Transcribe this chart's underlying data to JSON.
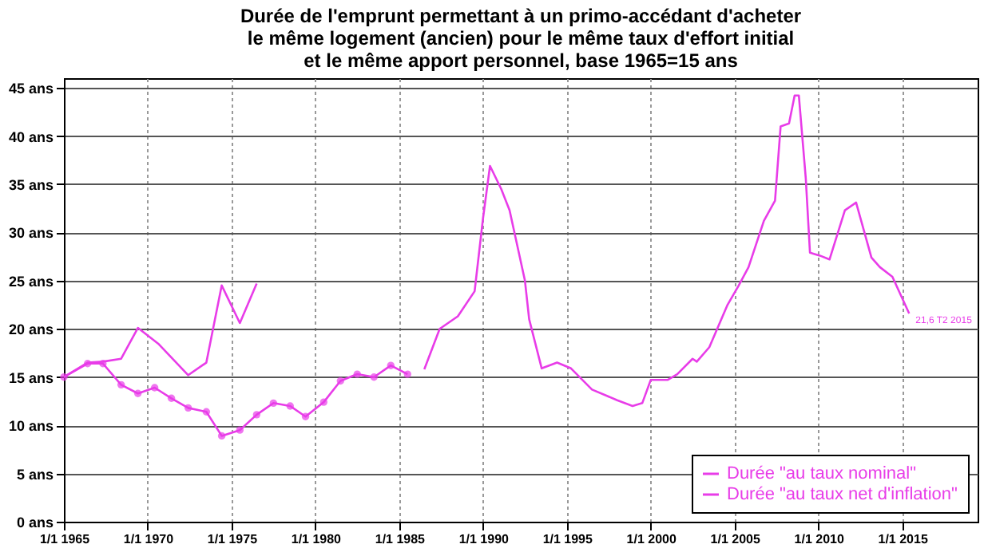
{
  "chart_data": {
    "type": "line",
    "title": [
      "Durée de l'emprunt permettant à un primo-accédant d'acheter",
      "le même logement (ancien) pour le même taux d'effort initial",
      "et le même apport personnel, base 1965=15 ans"
    ],
    "series": [
      {
        "name": "Durée \"au taux nominal\"",
        "color": "#e83ce8",
        "marker": "none",
        "x": [
          "1965-01",
          "1966-06",
          "1967-05",
          "1968-06",
          "1969-06",
          "1970-09",
          "1972-06",
          "1973-07",
          "1974-06",
          "1975-07",
          "1976-07",
          "1981-01",
          "1986-07",
          "1987-06",
          "1988-07",
          "1989-07",
          "1990-01",
          "1990-06",
          "1991-02",
          "1991-08",
          "1992-07",
          "1992-10",
          "1993-07",
          "1994-06",
          "1995-04",
          "1996-07",
          "1998-01",
          "1998-12",
          "1999-07",
          "2000-01",
          "2001-01",
          "2001-08",
          "2002-07",
          "2002-10",
          "2003-07",
          "2004-08",
          "2005-04",
          "2005-11",
          "2006-10",
          "2007-06",
          "2007-10",
          "2008-04",
          "2008-08",
          "2008-11",
          "2009-04",
          "2009-07",
          "2010-02",
          "2010-09",
          "2011-08",
          "2012-04",
          "2013-03",
          "2013-09",
          "2014-06",
          "2015-06"
        ],
        "values": [
          15.0,
          16.5,
          16.6,
          16.9,
          20.1,
          18.4,
          15.2,
          16.5,
          24.5,
          20.6,
          24.7,
          null,
          15.8,
          20.0,
          21.3,
          23.9,
          31.5,
          36.9,
          34.5,
          32.3,
          25.0,
          21.0,
          15.9,
          16.5,
          15.9,
          13.7,
          12.6,
          12.0,
          12.3,
          14.7,
          14.7,
          15.3,
          16.9,
          16.6,
          18.1,
          22.5,
          24.5,
          26.4,
          31.2,
          33.3,
          41.0,
          41.3,
          44.2,
          44.2,
          35.6,
          27.9,
          27.6,
          27.2,
          32.3,
          33.1,
          27.4,
          26.4,
          25.4,
          21.6
        ]
      },
      {
        "name": "Durée \"au taux net d'inflation\"",
        "color": "#e83ce8",
        "marker": "circle",
        "x": [
          "1965-01",
          "1966-06",
          "1967-05",
          "1968-06",
          "1969-06",
          "1970-06",
          "1971-06",
          "1972-06",
          "1973-07",
          "1974-06",
          "1975-07",
          "1976-07",
          "1977-07",
          "1978-07",
          "1979-06",
          "1980-07",
          "1981-07",
          "1982-07",
          "1983-07",
          "1984-07",
          "1985-07"
        ],
        "values": [
          15.0,
          16.4,
          16.4,
          14.2,
          13.3,
          13.9,
          12.8,
          11.8,
          11.4,
          8.9,
          9.5,
          11.1,
          12.3,
          12.0,
          10.9,
          12.4,
          14.6,
          15.3,
          15.0,
          16.2,
          15.3
        ]
      }
    ],
    "annotations": [
      {
        "text": "21,6 T2 2015",
        "x": "2015-06",
        "y": 21.6
      }
    ],
    "xlim": [
      "1965-01-01",
      "2019-07-01"
    ],
    "xticks": [
      {
        "value": "1965-01-01",
        "label": "1/1 1965"
      },
      {
        "value": "1970-01-01",
        "label": "1/1 1970"
      },
      {
        "value": "1975-01-01",
        "label": "1/1 1975"
      },
      {
        "value": "1980-01-01",
        "label": "1/1 1980"
      },
      {
        "value": "1985-01-01",
        "label": "1/1 1985"
      },
      {
        "value": "1990-01-01",
        "label": "1/1 1990"
      },
      {
        "value": "1995-01-01",
        "label": "1/1 1995"
      },
      {
        "value": "2000-01-01",
        "label": "1/1 2000"
      },
      {
        "value": "2005-01-01",
        "label": "1/1 2005"
      },
      {
        "value": "2010-01-01",
        "label": "1/1 2010"
      },
      {
        "value": "2015-01-01",
        "label": "1/1 2015"
      }
    ],
    "ylim": [
      0,
      46
    ],
    "yticks": [
      {
        "value": 0,
        "label": "0 ans"
      },
      {
        "value": 5,
        "label": "5 ans"
      },
      {
        "value": 10,
        "label": "10 ans"
      },
      {
        "value": 15,
        "label": "15 ans"
      },
      {
        "value": 20,
        "label": "20 ans"
      },
      {
        "value": 25,
        "label": "25 ans"
      },
      {
        "value": 30,
        "label": "30 ans"
      },
      {
        "value": 35,
        "label": "35 ans"
      },
      {
        "value": 40,
        "label": "40 ans"
      },
      {
        "value": 45,
        "label": "45 ans"
      }
    ],
    "grid": true,
    "legend": "bottom right"
  }
}
